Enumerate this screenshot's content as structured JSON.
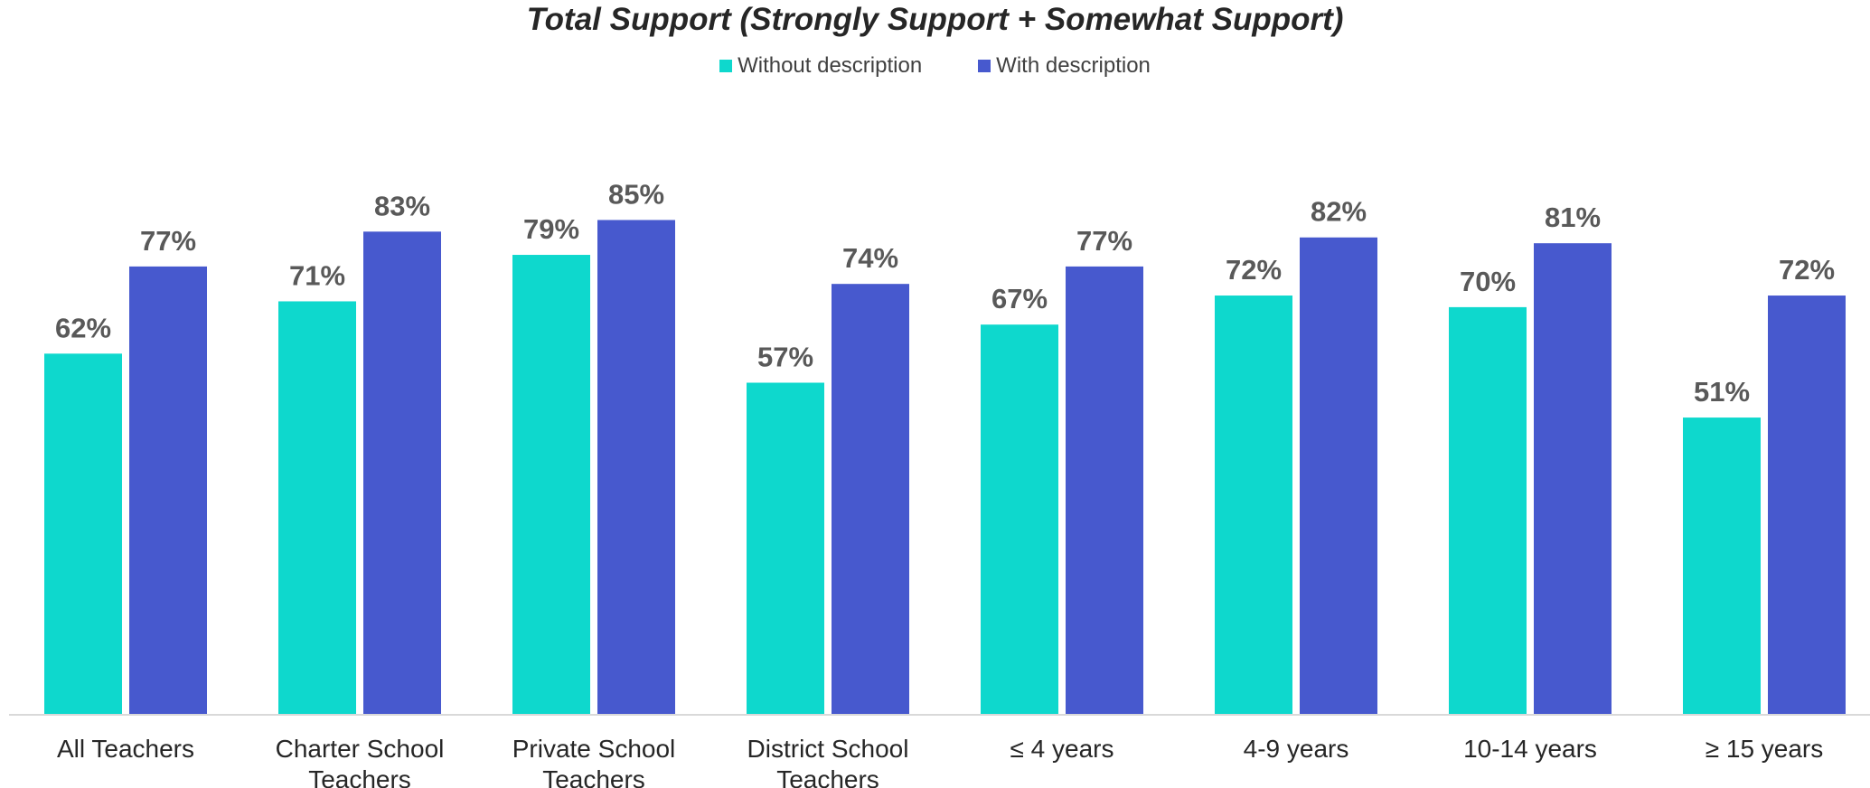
{
  "chart_data": {
    "type": "bar",
    "title": "Total Support (Strongly Support + Somewhat Support)",
    "xlabel": "",
    "ylabel": "",
    "ylim": [
      0,
      100
    ],
    "grid": false,
    "legend_position": "top-center",
    "categories": [
      [
        "All Teachers"
      ],
      [
        "Charter School",
        "Teachers"
      ],
      [
        "Private School",
        "Teachers"
      ],
      [
        "District School",
        "Teachers"
      ],
      [
        "≤ 4 years"
      ],
      [
        "4-9 years"
      ],
      [
        "10-14 years"
      ],
      [
        "≥ 15 years"
      ]
    ],
    "series": [
      {
        "name": "Without description",
        "color": "#0ED8CD",
        "values": [
          62,
          71,
          79,
          57,
          67,
          72,
          70,
          51
        ],
        "labels": [
          "62%",
          "71%",
          "79%",
          "57%",
          "67%",
          "72%",
          "70%",
          "51%"
        ]
      },
      {
        "name": "With description",
        "color": "#4759CE",
        "values": [
          77,
          83,
          85,
          74,
          77,
          82,
          81,
          72
        ],
        "labels": [
          "77%",
          "83%",
          "85%",
          "74%",
          "77%",
          "82%",
          "81%",
          "72%"
        ]
      }
    ]
  }
}
